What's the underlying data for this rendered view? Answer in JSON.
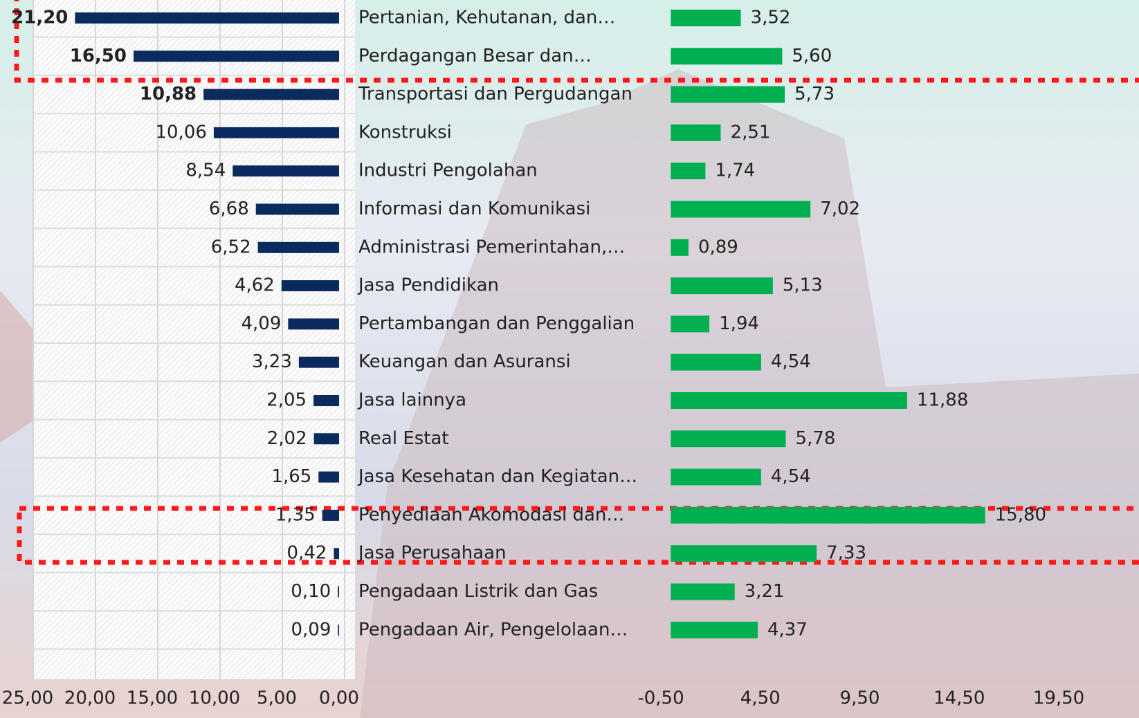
{
  "chart_data": {
    "type": "butterfly",
    "categories": [
      "Pertanian, Kehutanan, dan…",
      "Perdagangan Besar dan…",
      "Transportasi dan Pergudangan",
      "Konstruksi",
      "Industri Pengolahan",
      "Informasi dan Komunikasi",
      "Administrasi Pemerintahan,…",
      "Jasa Pendidikan",
      "Pertambangan dan Penggalian",
      "Keuangan dan Asuransi",
      "Jasa lainnya",
      "Real Estat",
      "Jasa Kesehatan dan Kegiatan…",
      "Penyediaan Akomodasi dan…",
      "Jasa Perusahaan",
      "Pengadaan Listrik dan Gas",
      "Pengadaan Air, Pengelolaan…"
    ],
    "series": [
      {
        "color": "#0b2a5e",
        "values": [
          21.2,
          16.5,
          10.88,
          10.06,
          8.54,
          6.68,
          6.52,
          4.62,
          4.09,
          3.23,
          2.05,
          2.02,
          1.65,
          1.35,
          0.42,
          0.1,
          0.09
        ],
        "value_labels": [
          "21,20",
          "16,50",
          "10,88",
          "10,06",
          "8,54",
          "6,68",
          "6,52",
          "4,62",
          "4,09",
          "3,23",
          "2,05",
          "2,02",
          "1,65",
          "1,35",
          "0,42",
          "0,10",
          "0,09"
        ],
        "xlim": [
          25,
          0
        ],
        "xticks": [
          {
            "value": 25,
            "label": "25,00"
          },
          {
            "value": 20,
            "label": "20,00"
          },
          {
            "value": 15,
            "label": "15,00"
          },
          {
            "value": 10,
            "label": "10,00"
          },
          {
            "value": 5,
            "label": "5,00"
          },
          {
            "value": 0,
            "label": "0,00"
          }
        ]
      },
      {
        "color": "#00b050",
        "values": [
          3.52,
          5.6,
          5.73,
          2.51,
          1.74,
          7.02,
          0.89,
          5.13,
          1.94,
          4.54,
          11.88,
          5.78,
          4.54,
          15.8,
          7.33,
          3.21,
          4.37
        ],
        "value_labels": [
          "3,52",
          "5,60",
          "5,73",
          "2,51",
          "1,74",
          "7,02",
          "0,89",
          "5,13",
          "1,94",
          "4,54",
          "11,88",
          "5,78",
          "4,54",
          "15,80",
          "7,33",
          "3,21",
          "4,37"
        ],
        "xlim": [
          -0.5,
          19.5
        ],
        "xticks": [
          {
            "value": -0.5,
            "label": "-0,50"
          },
          {
            "value": 4.5,
            "label": "4,50"
          },
          {
            "value": 9.5,
            "label": "9,50"
          },
          {
            "value": 14.5,
            "label": "14,50"
          },
          {
            "value": 19.5,
            "label": "19,50"
          }
        ]
      }
    ]
  }
}
